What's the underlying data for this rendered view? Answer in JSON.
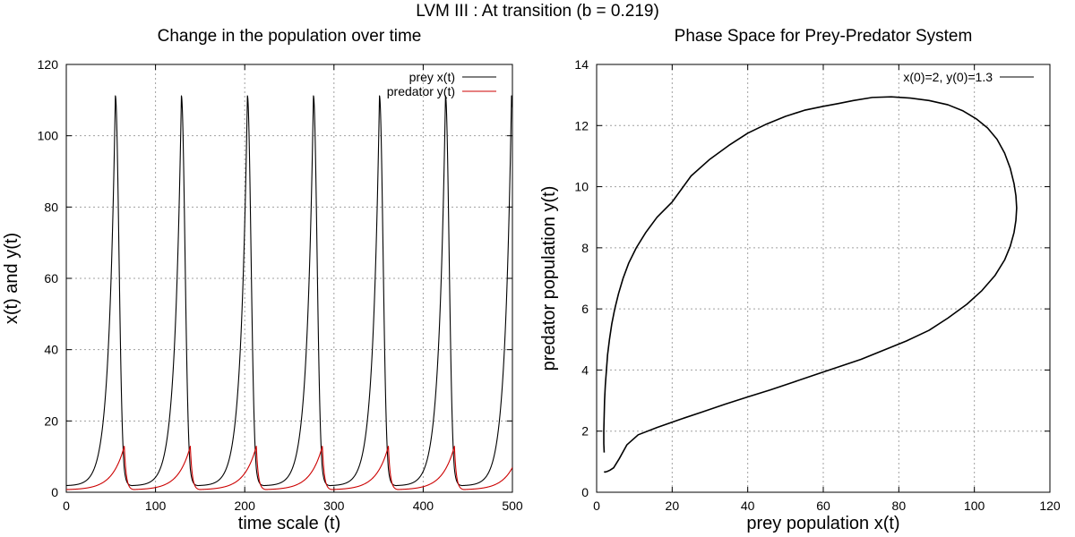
{
  "figure": {
    "suptitle": "LVM III : At transition (b = 0.219)"
  },
  "chart_data": [
    {
      "type": "line",
      "title": "Change in the population over time",
      "xlabel": "time scale (t)",
      "ylabel": "x(t) and y(t)",
      "xlim": [
        0,
        500
      ],
      "ylim": [
        0,
        120
      ],
      "xticks": [
        0,
        100,
        200,
        300,
        400,
        500
      ],
      "yticks": [
        0,
        20,
        40,
        60,
        80,
        100,
        120
      ],
      "grid": true,
      "legend_position": "top-right",
      "model": {
        "period": 74,
        "prey_peak_times": [
          55,
          129,
          203,
          277,
          351,
          425,
          499
        ],
        "prey": {
          "min": 1.8,
          "max": 111.2
        },
        "predator": {
          "min": 0.65,
          "max": 12.9,
          "peak_lag": 10
        }
      },
      "series": [
        {
          "name": "prey x(t)",
          "color": "#000000"
        },
        {
          "name": "predator y(t)",
          "color": "#cc0000"
        }
      ]
    },
    {
      "type": "line",
      "title": "Phase Space for Prey-Predator System",
      "xlabel": "prey population x(t)",
      "ylabel": "predator population y(t)",
      "xlim": [
        0,
        120
      ],
      "ylim": [
        0,
        14
      ],
      "xticks": [
        0,
        20,
        40,
        60,
        80,
        100,
        120
      ],
      "yticks": [
        0,
        2,
        4,
        6,
        8,
        10,
        12,
        14
      ],
      "grid": true,
      "legend_position": "top-right",
      "series": [
        {
          "name": "x(0)=2, y(0)=1.3",
          "color": "#000000",
          "x": [
            2.0,
            1.9,
            1.9,
            2.0,
            2.1,
            2.3,
            2.6,
            2.9,
            3.4,
            4.0,
            4.8,
            5.8,
            7.0,
            8.5,
            10.5,
            13.0,
            16.0,
            20.0,
            25.0,
            30.0,
            35.0,
            40.0,
            45.0,
            50.0,
            55.0,
            60.0,
            64.0,
            68.0,
            73.0,
            78.0,
            83.0,
            88.0,
            93.0,
            97.0,
            100.5,
            103.5,
            106.0,
            108.0,
            109.5,
            110.5,
            111.0,
            111.2,
            111.0,
            110.5,
            109.5,
            108.0,
            105.5,
            102.0,
            98.0,
            93.0,
            88.0,
            82.0,
            76.0,
            70.0,
            64.0,
            58.0,
            52.0,
            46.0,
            40.0,
            34.0,
            28.0,
            22.0,
            16.0,
            11.0,
            8.0,
            6.0,
            4.5,
            3.5,
            2.8,
            2.2,
            2.0
          ],
          "y": [
            1.3,
            1.6,
            2.0,
            2.5,
            3.0,
            3.5,
            4.0,
            4.5,
            5.0,
            5.5,
            6.0,
            6.5,
            7.0,
            7.5,
            8.0,
            8.5,
            9.0,
            9.5,
            10.35,
            10.9,
            11.35,
            11.75,
            12.05,
            12.3,
            12.5,
            12.63,
            12.72,
            12.82,
            12.92,
            12.94,
            12.9,
            12.82,
            12.68,
            12.48,
            12.22,
            11.92,
            11.55,
            11.1,
            10.6,
            10.1,
            9.7,
            9.3,
            8.9,
            8.5,
            8.05,
            7.6,
            7.1,
            6.6,
            6.15,
            5.7,
            5.3,
            4.95,
            4.65,
            4.35,
            4.1,
            3.85,
            3.6,
            3.35,
            3.12,
            2.88,
            2.63,
            2.38,
            2.12,
            1.88,
            1.55,
            1.1,
            0.8,
            0.72,
            0.68,
            0.66,
            0.68
          ]
        }
      ]
    }
  ]
}
